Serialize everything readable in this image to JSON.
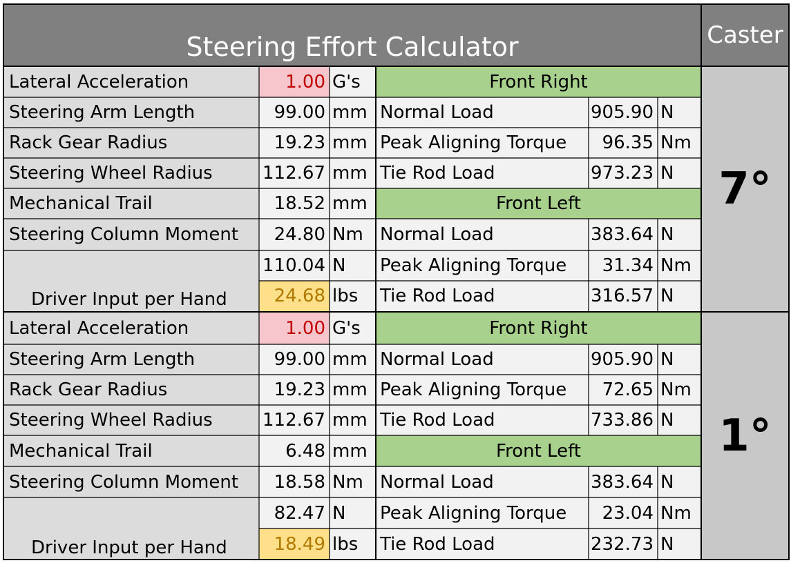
{
  "title": "Steering Effort Calculator",
  "caster_header": "Caster",
  "colors": {
    "header": "#808080",
    "input_pink": "#f6c6cc",
    "output_yellow": "#ffe08a",
    "section_green": "#a9d18e"
  },
  "blocks": [
    {
      "caster": "7°",
      "left": [
        {
          "label": "Lateral Acceleration",
          "value": "1.00",
          "unit": "G's"
        },
        {
          "label": "Steering Arm Length",
          "value": "99.00",
          "unit": "mm"
        },
        {
          "label": "Rack Gear Radius",
          "value": "19.23",
          "unit": "mm"
        },
        {
          "label": "Steering Wheel Radius",
          "value": "112.67",
          "unit": "mm"
        },
        {
          "label": "Mechanical Trail",
          "value": "18.52",
          "unit": "mm"
        },
        {
          "label": "Steering Column Moment",
          "value": "24.80",
          "unit": "Nm"
        }
      ],
      "driver": {
        "label": "Driver Input per Hand",
        "force": "110.04",
        "force_unit": "N",
        "value": "24.68",
        "unit": "lbs"
      },
      "front_right": {
        "header": "Front Right",
        "rows": [
          {
            "label": "Normal Load",
            "value": "905.90",
            "unit": "N"
          },
          {
            "label": "Peak Aligning Torque",
            "value": "96.35",
            "unit": "Nm"
          },
          {
            "label": "Tie Rod Load",
            "value": "973.23",
            "unit": "N"
          }
        ]
      },
      "front_left": {
        "header": "Front Left",
        "rows": [
          {
            "label": "Normal Load",
            "value": "383.64",
            "unit": "N"
          },
          {
            "label": "Peak Aligning Torque",
            "value": "31.34",
            "unit": "Nm"
          },
          {
            "label": "Tie Rod Load",
            "value": "316.57",
            "unit": "N"
          }
        ]
      }
    },
    {
      "caster": "1°",
      "left": [
        {
          "label": "Lateral Acceleration",
          "value": "1.00",
          "unit": "G's"
        },
        {
          "label": "Steering Arm Length",
          "value": "99.00",
          "unit": "mm"
        },
        {
          "label": "Rack Gear Radius",
          "value": "19.23",
          "unit": "mm"
        },
        {
          "label": "Steering Wheel Radius",
          "value": "112.67",
          "unit": "mm"
        },
        {
          "label": "Mechanical Trail",
          "value": "6.48",
          "unit": "mm"
        },
        {
          "label": "Steering Column Moment",
          "value": "18.58",
          "unit": "Nm"
        }
      ],
      "driver": {
        "label": "Driver Input per Hand",
        "force": "82.47",
        "force_unit": "N",
        "value": "18.49",
        "unit": "lbs"
      },
      "front_right": {
        "header": "Front Right",
        "rows": [
          {
            "label": "Normal Load",
            "value": "905.90",
            "unit": "N"
          },
          {
            "label": "Peak Aligning Torque",
            "value": "72.65",
            "unit": "Nm"
          },
          {
            "label": "Tie Rod Load",
            "value": "733.86",
            "unit": "N"
          }
        ]
      },
      "front_left": {
        "header": "Front Left",
        "rows": [
          {
            "label": "Normal Load",
            "value": "383.64",
            "unit": "N"
          },
          {
            "label": "Peak Aligning Torque",
            "value": "23.04",
            "unit": "Nm"
          },
          {
            "label": "Tie Rod Load",
            "value": "232.73",
            "unit": "N"
          }
        ]
      }
    }
  ]
}
